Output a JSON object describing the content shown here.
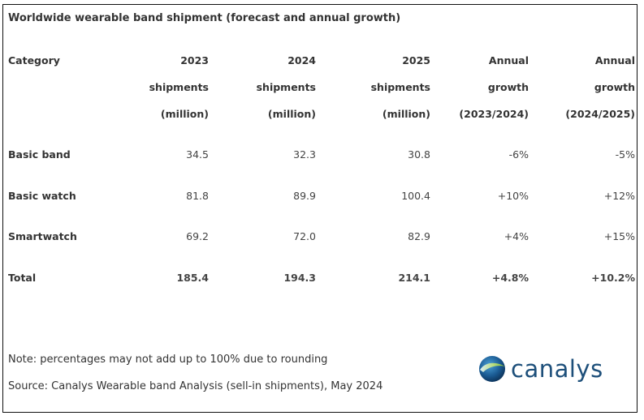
{
  "title": "Worldwide wearable band shipment (forecast and annual growth)",
  "table": {
    "headers": [
      {
        "lines": [
          "Category",
          "",
          ""
        ]
      },
      {
        "lines": [
          "2023",
          "shipments",
          "(million)"
        ]
      },
      {
        "lines": [
          "2024",
          "shipments",
          "(million)"
        ]
      },
      {
        "lines": [
          "2025",
          "shipments",
          "(million)"
        ]
      },
      {
        "lines": [
          "Annual",
          "growth",
          "(2023/2024)"
        ]
      },
      {
        "lines": [
          "Annual",
          "growth",
          "(2024/2025)"
        ]
      }
    ],
    "rows": [
      {
        "cells": [
          "Basic band",
          "34.5",
          "32.3",
          "30.8",
          "-6%",
          "-5%"
        ]
      },
      {
        "cells": [
          "Basic watch",
          "81.8",
          "89.9",
          "100.4",
          "+10%",
          "+12%"
        ]
      },
      {
        "cells": [
          "Smartwatch",
          "69.2",
          "72.0",
          "82.9",
          "+4%",
          "+15%"
        ]
      },
      {
        "cells": [
          "Total",
          "185.4",
          "194.3",
          "214.1",
          "+4.8%",
          "+10.2%"
        ]
      }
    ]
  },
  "footer": {
    "note": "Note: percentages may not add up to 100% due to rounding",
    "source": "Source: Canalys Wearable band Analysis (sell-in shipments), May 2024"
  },
  "logo": {
    "text": "canalys",
    "icon": "globe-swoosh-icon",
    "colors": {
      "text": "#1d4f7a",
      "globe_dark": "#0f3f6e",
      "globe_light": "#2e7fb8",
      "swoosh": "#8cc63f"
    }
  }
}
